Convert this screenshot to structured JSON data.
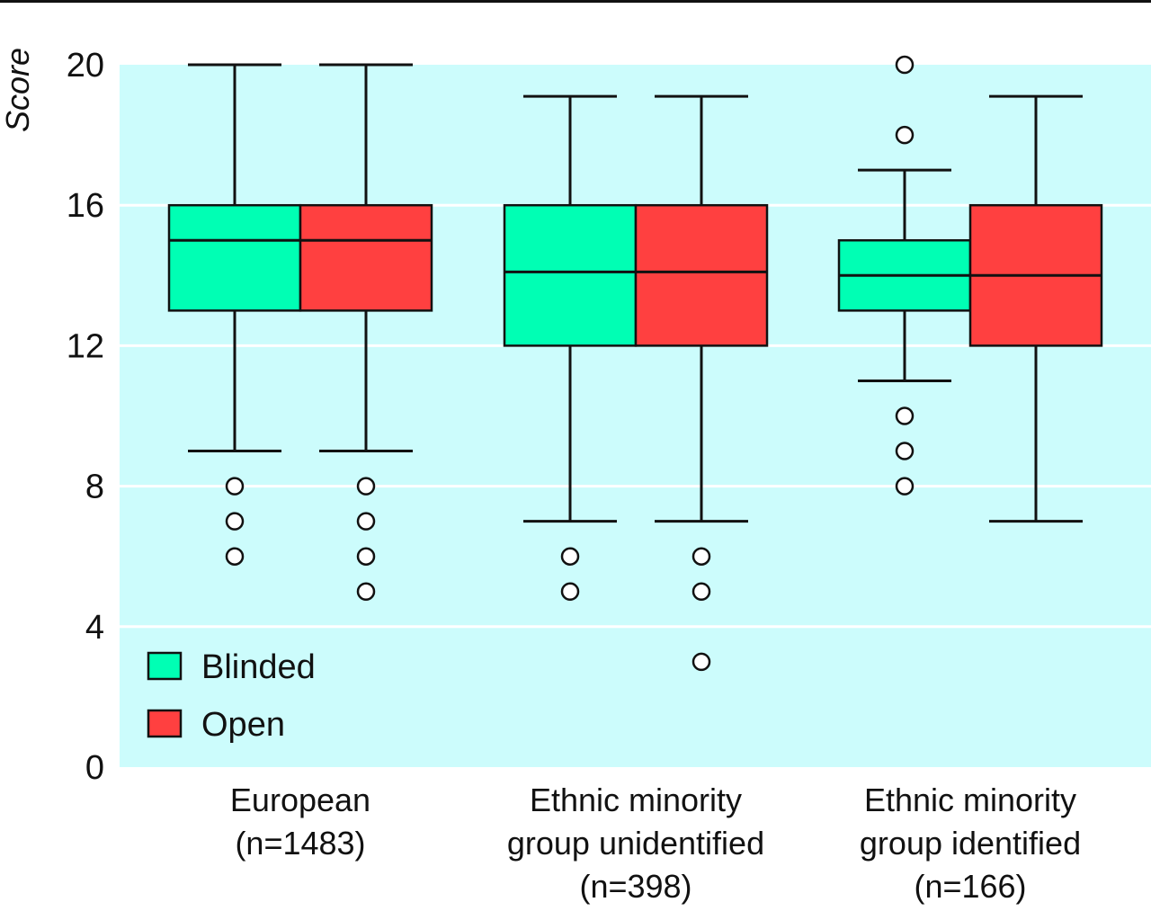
{
  "chart_data": {
    "type": "box",
    "title": "",
    "ylabel": "Score",
    "xlabel": "",
    "ylim": [
      0,
      20
    ],
    "yticks": [
      0,
      4,
      8,
      12,
      16,
      20
    ],
    "grid": true,
    "legend_position": "bottom-left",
    "background_color": "#ccfcfc",
    "categories": [
      {
        "lines": [
          "European",
          "(n=1483)"
        ]
      },
      {
        "lines": [
          "Ethnic minority",
          "group unidentified",
          "(n=398)"
        ]
      },
      {
        "lines": [
          "Ethnic minority",
          "group identified",
          "(n=166)"
        ]
      }
    ],
    "series": [
      {
        "name": "Blinded",
        "color": "#00ffb4",
        "boxes": [
          {
            "whisker_low": 9,
            "q1": 13,
            "median": 15,
            "q3": 16,
            "whisker_high": 20,
            "outliers": [
              8,
              7,
              6
            ]
          },
          {
            "whisker_low": 7,
            "q1": 12,
            "median": 14.1,
            "q3": 16,
            "whisker_high": 19.1,
            "outliers": [
              6,
              5
            ]
          },
          {
            "whisker_low": 11,
            "q1": 13,
            "median": 14,
            "q3": 15,
            "whisker_high": 17,
            "outliers": [
              20,
              18,
              10,
              9,
              8
            ]
          }
        ]
      },
      {
        "name": "Open",
        "color": "#ff4040",
        "boxes": [
          {
            "whisker_low": 9,
            "q1": 13,
            "median": 15,
            "q3": 16,
            "whisker_high": 20,
            "outliers": [
              8,
              7,
              6,
              5
            ]
          },
          {
            "whisker_low": 7,
            "q1": 12,
            "median": 14.1,
            "q3": 16,
            "whisker_high": 19.1,
            "outliers": [
              6,
              5,
              3
            ]
          },
          {
            "whisker_low": 7,
            "q1": 12,
            "median": 14,
            "q3": 16,
            "whisker_high": 19.1,
            "outliers": []
          }
        ]
      }
    ]
  }
}
